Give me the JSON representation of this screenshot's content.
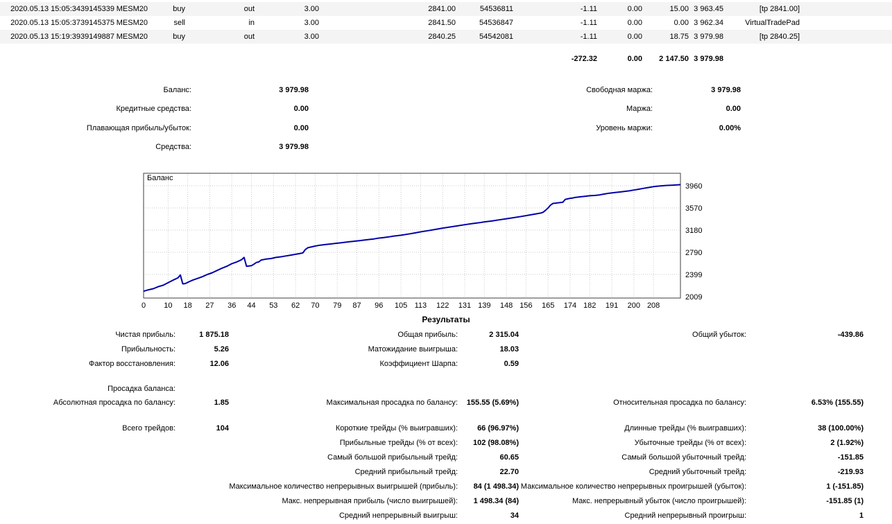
{
  "deals_table": {
    "rows": [
      {
        "time": "2020.05.13 15:05:34",
        "deal": "39145339",
        "symbol": "MESM20",
        "type": "buy",
        "direction": "out",
        "volume": "3.00",
        "price": "2841.00",
        "order": "54536811",
        "commission": "-1.11",
        "swap": "0.00",
        "profit": "15.00",
        "balance": "3 963.45",
        "comment": "[tp 2841.00]"
      },
      {
        "time": "2020.05.13 15:05:37",
        "deal": "39145375",
        "symbol": "MESM20",
        "type": "sell",
        "direction": "in",
        "volume": "3.00",
        "price": "2841.50",
        "order": "54536847",
        "commission": "-1.11",
        "swap": "0.00",
        "profit": "0.00",
        "balance": "3 962.34",
        "comment": "VirtualTradePad"
      },
      {
        "time": "2020.05.13 15:19:39",
        "deal": "39149887",
        "symbol": "MESM20",
        "type": "buy",
        "direction": "out",
        "volume": "3.00",
        "price": "2840.25",
        "order": "54542081",
        "commission": "-1.11",
        "swap": "0.00",
        "profit": "18.75",
        "balance": "3 979.98",
        "comment": "[tp 2840.25]"
      }
    ],
    "totals": {
      "commission": "-272.32",
      "swap": "0.00",
      "profit": "2 147.50",
      "balance": "3 979.98"
    }
  },
  "account_summary": {
    "left": [
      {
        "label": "Баланс:",
        "value": "3 979.98"
      },
      {
        "label": "Кредитные средства:",
        "value": "0.00"
      },
      {
        "label": "Плавающая прибыль/убыток:",
        "value": "0.00"
      },
      {
        "label": "Средства:",
        "value": "3 979.98"
      }
    ],
    "right": [
      {
        "label": "Свободная маржа:",
        "value": "3 979.98"
      },
      {
        "label": "Маржа:",
        "value": "0.00"
      },
      {
        "label": "Уровень маржи:",
        "value": "0.00%"
      }
    ]
  },
  "chart_data": {
    "type": "line",
    "series_name": "Баланс",
    "line_color": "#0000A8",
    "grid": true,
    "xlabel": "",
    "ylabel": "",
    "xlim": [
      0,
      219
    ],
    "ylim": [
      1985,
      4180
    ],
    "x_ticks": [
      0,
      10,
      18,
      27,
      36,
      44,
      53,
      62,
      70,
      79,
      87,
      96,
      105,
      113,
      122,
      131,
      139,
      148,
      156,
      165,
      174,
      182,
      191,
      200,
      208
    ],
    "y_ticks": [
      3960,
      3570,
      3180,
      2790,
      2399,
      2009
    ],
    "points": [
      [
        0,
        2105
      ],
      [
        2,
        2130
      ],
      [
        4,
        2150
      ],
      [
        6,
        2185
      ],
      [
        8,
        2210
      ],
      [
        10,
        2255
      ],
      [
        12,
        2300
      ],
      [
        14,
        2340
      ],
      [
        15,
        2390
      ],
      [
        16,
        2235
      ],
      [
        17,
        2240
      ],
      [
        18,
        2260
      ],
      [
        20,
        2300
      ],
      [
        22,
        2330
      ],
      [
        24,
        2360
      ],
      [
        26,
        2400
      ],
      [
        28,
        2430
      ],
      [
        30,
        2470
      ],
      [
        32,
        2510
      ],
      [
        34,
        2545
      ],
      [
        36,
        2590
      ],
      [
        38,
        2620
      ],
      [
        39,
        2640
      ],
      [
        40,
        2660
      ],
      [
        41,
        2700
      ],
      [
        42,
        2545
      ],
      [
        43,
        2550
      ],
      [
        44,
        2555
      ],
      [
        45,
        2580
      ],
      [
        46,
        2610
      ],
      [
        47,
        2620
      ],
      [
        48,
        2655
      ],
      [
        50,
        2670
      ],
      [
        52,
        2680
      ],
      [
        54,
        2700
      ],
      [
        56,
        2710
      ],
      [
        58,
        2725
      ],
      [
        60,
        2740
      ],
      [
        62,
        2755
      ],
      [
        64,
        2770
      ],
      [
        65,
        2780
      ],
      [
        66,
        2840
      ],
      [
        67,
        2870
      ],
      [
        68,
        2880
      ],
      [
        70,
        2900
      ],
      [
        72,
        2915
      ],
      [
        74,
        2925
      ],
      [
        76,
        2935
      ],
      [
        78,
        2945
      ],
      [
        80,
        2955
      ],
      [
        82,
        2965
      ],
      [
        84,
        2975
      ],
      [
        86,
        2985
      ],
      [
        88,
        2995
      ],
      [
        90,
        3005
      ],
      [
        92,
        3015
      ],
      [
        94,
        3025
      ],
      [
        96,
        3040
      ],
      [
        98,
        3050
      ],
      [
        100,
        3060
      ],
      [
        102,
        3075
      ],
      [
        105,
        3090
      ],
      [
        108,
        3110
      ],
      [
        110,
        3125
      ],
      [
        113,
        3150
      ],
      [
        116,
        3170
      ],
      [
        118,
        3185
      ],
      [
        120,
        3200
      ],
      [
        122,
        3215
      ],
      [
        125,
        3235
      ],
      [
        128,
        3255
      ],
      [
        131,
        3275
      ],
      [
        134,
        3295
      ],
      [
        137,
        3310
      ],
      [
        139,
        3325
      ],
      [
        142,
        3340
      ],
      [
        145,
        3360
      ],
      [
        148,
        3380
      ],
      [
        151,
        3400
      ],
      [
        154,
        3420
      ],
      [
        156,
        3435
      ],
      [
        158,
        3450
      ],
      [
        160,
        3465
      ],
      [
        162,
        3480
      ],
      [
        163,
        3495
      ],
      [
        164,
        3530
      ],
      [
        165,
        3570
      ],
      [
        166,
        3620
      ],
      [
        167,
        3650
      ],
      [
        168,
        3655
      ],
      [
        169,
        3660
      ],
      [
        170,
        3665
      ],
      [
        171,
        3670
      ],
      [
        172,
        3720
      ],
      [
        173,
        3730
      ],
      [
        174,
        3740
      ],
      [
        175,
        3745
      ],
      [
        176,
        3755
      ],
      [
        178,
        3765
      ],
      [
        180,
        3775
      ],
      [
        182,
        3785
      ],
      [
        184,
        3790
      ],
      [
        186,
        3800
      ],
      [
        188,
        3815
      ],
      [
        190,
        3830
      ],
      [
        192,
        3840
      ],
      [
        194,
        3850
      ],
      [
        196,
        3860
      ],
      [
        198,
        3870
      ],
      [
        200,
        3885
      ],
      [
        202,
        3900
      ],
      [
        204,
        3915
      ],
      [
        206,
        3930
      ],
      [
        208,
        3945
      ],
      [
        210,
        3955
      ],
      [
        213,
        3965
      ],
      [
        216,
        3972
      ],
      [
        219,
        3980
      ]
    ]
  },
  "results": {
    "title": "Результаты",
    "profit_rows": [
      {
        "al": "Чистая прибыль:",
        "av": "1 875.18",
        "bl": "Общая прибыль:",
        "bv": "2 315.04",
        "cl": "Общий убыток:",
        "cv": "-439.86"
      },
      {
        "al": "Прибыльность:",
        "av": "5.26",
        "bl": "Матожидание выигрыша:",
        "bv": "18.03"
      },
      {
        "al": "Фактор восстановления:",
        "av": "12.06",
        "bl": "Коэффициент Шарпа:",
        "bv": "0.59"
      }
    ],
    "drawdown_rows": [
      {
        "al": "Просадка баланса:"
      },
      {
        "al": "Абсолютная просадка по балансу:",
        "av": "1.85",
        "bl": "Максимальная просадка по балансу:",
        "bv": "155.55 (5.69%)",
        "cl": "Относительная просадка по балансу:",
        "cv": "6.53% (155.55)"
      }
    ],
    "trades_rows": [
      {
        "al": "Всего трейдов:",
        "av": "104",
        "bl": "Короткие трейды (% выигравших):",
        "bv": "66 (96.97%)",
        "cl": "Длинные трейды (% выигравших):",
        "cv": "38 (100.00%)"
      },
      {
        "bl": "Прибыльные трейды (% от всех):",
        "bv": "102 (98.08%)",
        "cl": "Убыточные трейды (% от всех):",
        "cv": "2 (1.92%)"
      },
      {
        "bl": "Самый большой прибыльный трейд:",
        "bv": "60.65",
        "cl": "Самый большой убыточный трейд:",
        "cv": "-151.85"
      },
      {
        "bl": "Средний прибыльный трейд:",
        "bv": "22.70",
        "cl": "Средний убыточный трейд:",
        "cv": "-219.93"
      },
      {
        "bl": "Максимальное количество непрерывных выигрышей (прибыль):",
        "bv": "84 (1 498.34)",
        "cl": "Максимальное количество непрерывных проигрышей (убыток):",
        "cv": "1 (-151.85)"
      },
      {
        "bl": "Макс. непрерывная прибыль (число выигрышей):",
        "bv": "1 498.34 (84)",
        "cl": "Макс. непрерывный убыток (число проигрышей):",
        "cv": "-151.85 (1)"
      },
      {
        "bl": "Средний непрерывный выигрыш:",
        "bv": "34",
        "cl": "Средний непрерывный проигрыш:",
        "cv": "1"
      }
    ]
  }
}
